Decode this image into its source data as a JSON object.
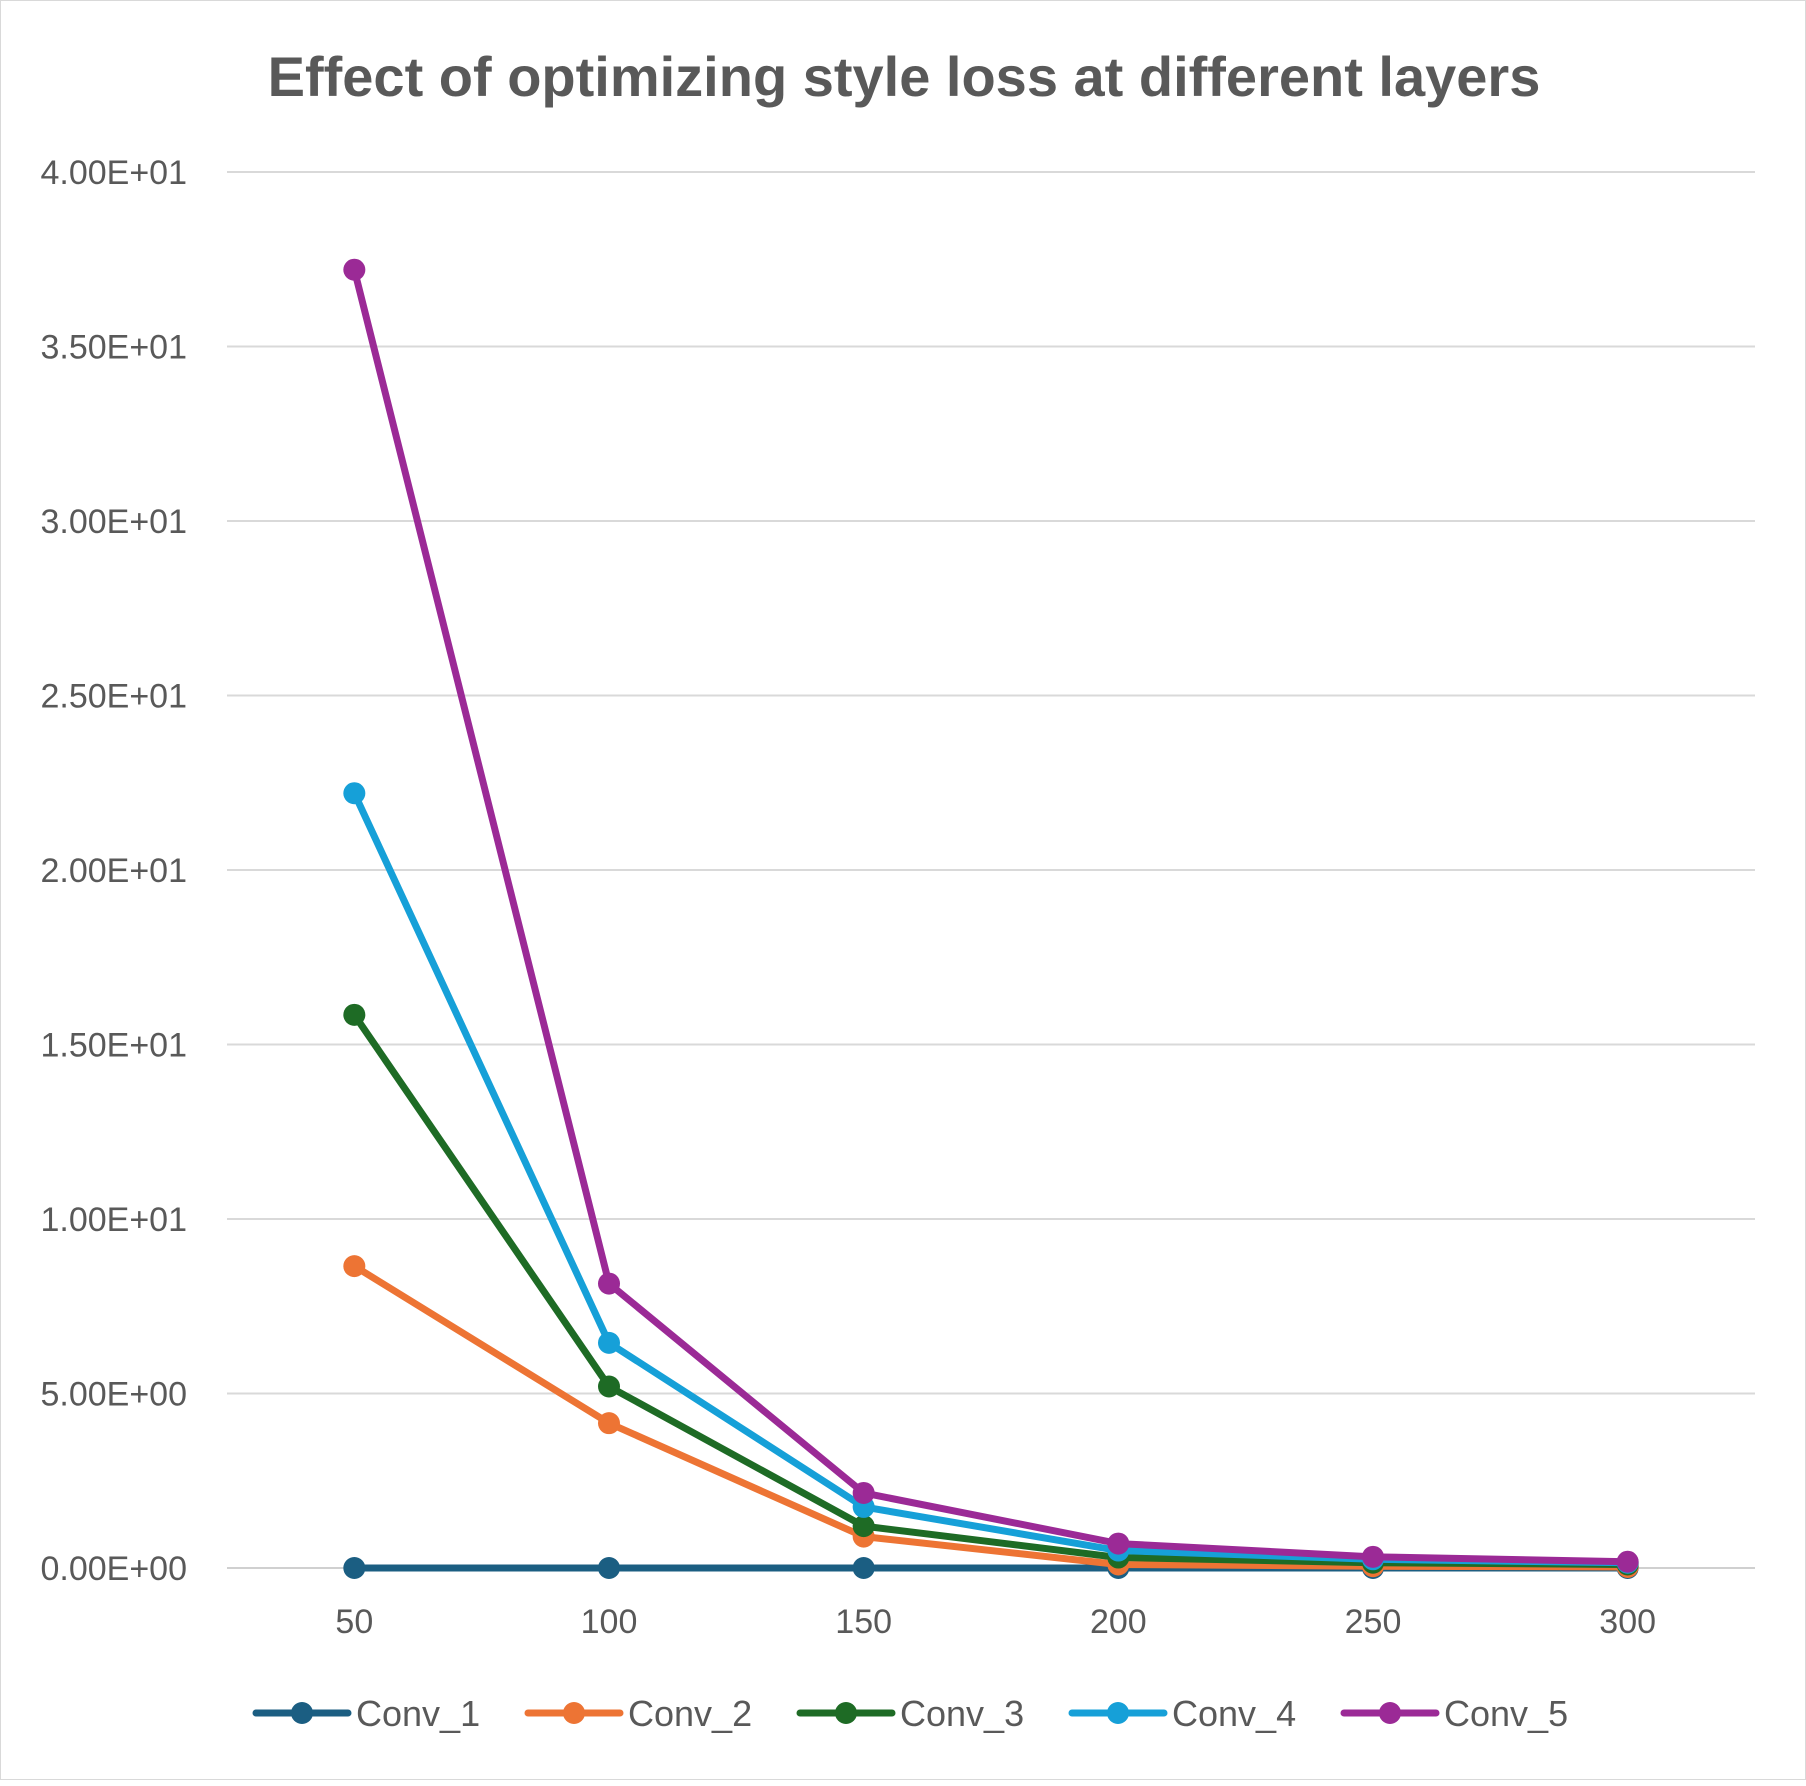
{
  "chart_data": {
    "type": "line",
    "title": "Effect of optimizing style loss at different layers",
    "xlabel": "",
    "ylabel": "",
    "x": [
      50,
      100,
      150,
      200,
      250,
      300
    ],
    "ylim": [
      0,
      40
    ],
    "yticks": [
      0,
      5,
      10,
      15,
      20,
      25,
      30,
      35,
      40
    ],
    "ytick_labels": [
      "0.00E+00",
      "5.00E+00",
      "1.00E+01",
      "1.50E+01",
      "2.00E+01",
      "2.50E+01",
      "3.00E+01",
      "3.50E+01",
      "4.00E+01"
    ],
    "grid": true,
    "legend_position": "bottom",
    "series": [
      {
        "name": "Conv_1",
        "color": "#1b5e82",
        "values": [
          0.0,
          0.0,
          0.0,
          0.0,
          0.0,
          0.0
        ]
      },
      {
        "name": "Conv_2",
        "color": "#ed7434",
        "values": [
          8.65,
          4.15,
          0.9,
          0.1,
          0.05,
          0.03
        ]
      },
      {
        "name": "Conv_3",
        "color": "#1e6b25",
        "values": [
          15.85,
          5.2,
          1.2,
          0.3,
          0.15,
          0.1
        ]
      },
      {
        "name": "Conv_4",
        "color": "#16a0d8",
        "values": [
          22.2,
          6.45,
          1.75,
          0.5,
          0.25,
          0.15
        ]
      },
      {
        "name": "Conv_5",
        "color": "#9b2a96",
        "values": [
          37.2,
          8.15,
          2.15,
          0.7,
          0.32,
          0.18
        ]
      }
    ]
  }
}
